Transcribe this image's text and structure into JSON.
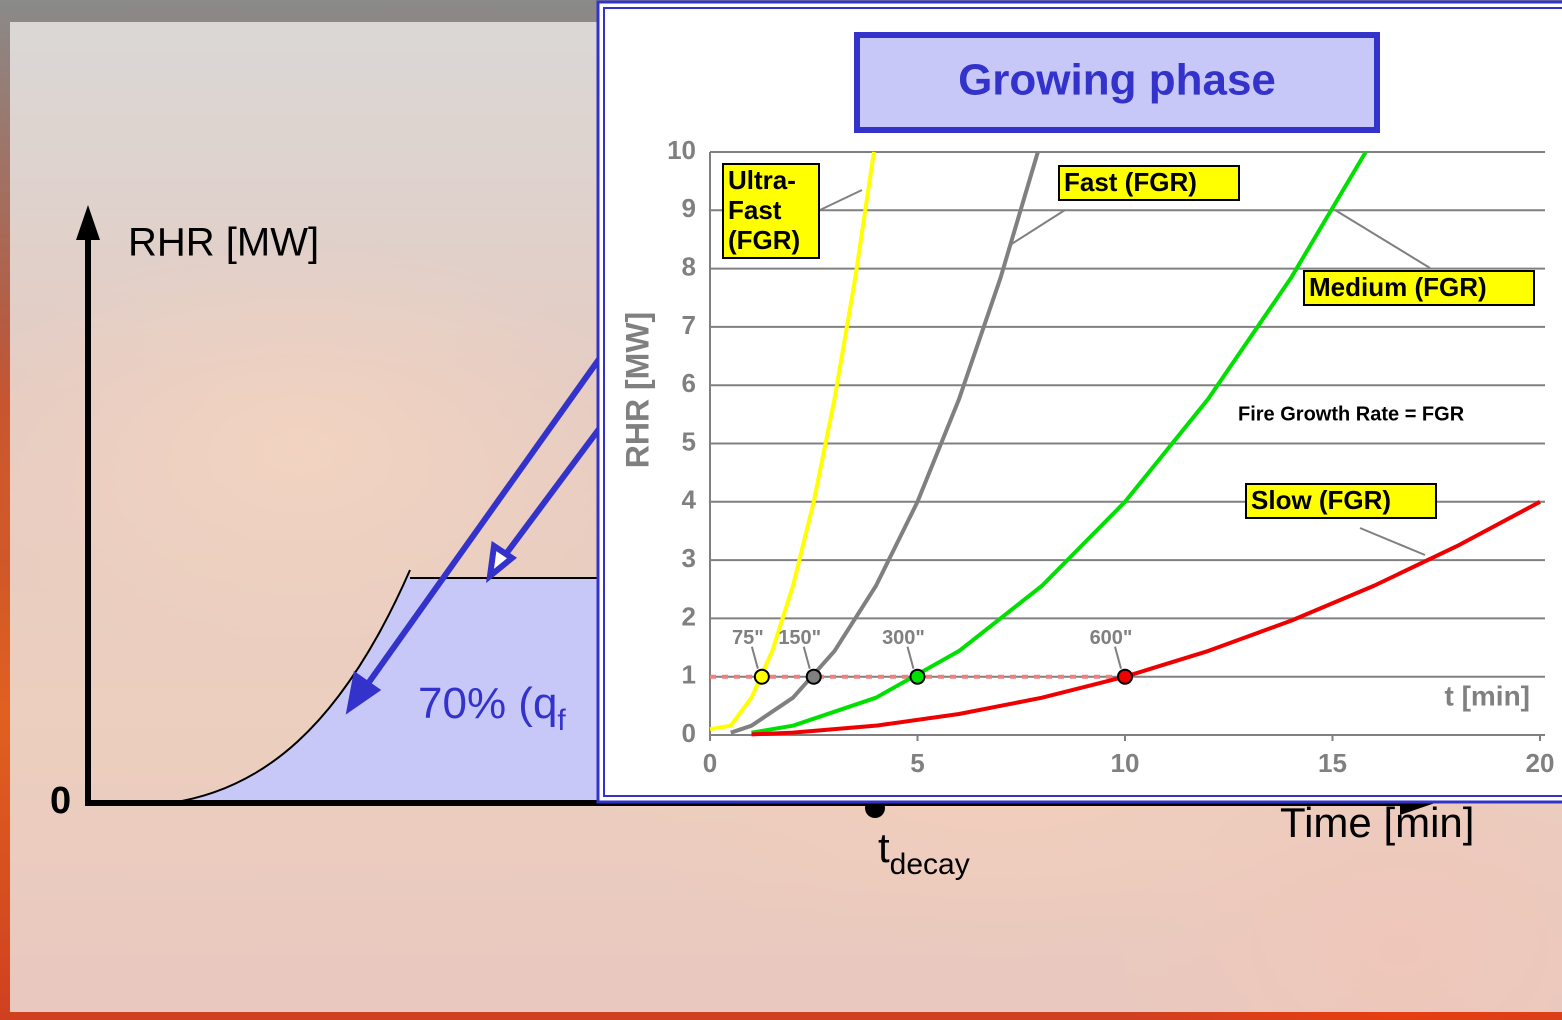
{
  "slide": {
    "y_label": "RHR [MW]",
    "origin": "0",
    "x_label": "Time [min]",
    "t_decay": {
      "text": "t",
      "sub": "decay"
    },
    "annotation": {
      "text": "70% (q",
      "sub": "f"
    }
  },
  "chart_data": {
    "type": "line",
    "title": "Growing phase",
    "y_label": "RHR [MW]",
    "x_label": "t [min]",
    "note": "Fire Growth Rate = FGR",
    "xlim": [
      0,
      20
    ],
    "ylim": [
      0,
      10
    ],
    "xticks": [
      0,
      5,
      10,
      15,
      20
    ],
    "yticks": [
      0,
      1,
      2,
      3,
      4,
      5,
      6,
      7,
      8,
      9,
      10
    ],
    "grid": true,
    "reference_line": {
      "y": 1,
      "x": [
        0,
        10
      ],
      "color": "#f08080"
    },
    "series": [
      {
        "name": "Ultra-Fast (FGR)",
        "color": "#ffff00",
        "x": [
          0,
          0.5,
          1,
          1.5,
          2,
          2.5,
          3,
          3.5,
          3.95
        ],
        "values": [
          0.1,
          0.16,
          0.64,
          1.44,
          2.56,
          4,
          5.76,
          7.84,
          10
        ],
        "marker": {
          "x": 1.25,
          "y": 1,
          "label": "75\""
        }
      },
      {
        "name": "Fast (FGR)",
        "color": "#808080",
        "x": [
          0.5,
          1,
          2,
          3,
          4,
          5,
          6,
          7,
          7.9
        ],
        "values": [
          0.04,
          0.16,
          0.64,
          1.44,
          2.56,
          4,
          5.76,
          7.84,
          10
        ],
        "marker": {
          "x": 2.5,
          "y": 1,
          "label": "150\""
        }
      },
      {
        "name": "Medium (FGR)",
        "color": "#00e000",
        "x": [
          1,
          2,
          4,
          6,
          8,
          10,
          12,
          14,
          15.8
        ],
        "values": [
          0.04,
          0.16,
          0.64,
          1.44,
          2.56,
          4,
          5.76,
          7.84,
          10
        ],
        "marker": {
          "x": 5,
          "y": 1,
          "label": "300\""
        }
      },
      {
        "name": "Slow (FGR)",
        "color": "#ee0000",
        "x": [
          1,
          2,
          4,
          6,
          8,
          10,
          12,
          14,
          16,
          18,
          20
        ],
        "values": [
          0.01,
          0.04,
          0.16,
          0.36,
          0.64,
          1,
          1.44,
          1.96,
          2.56,
          3.24,
          4
        ],
        "marker": {
          "x": 10,
          "y": 1,
          "label": "600\""
        }
      }
    ]
  }
}
